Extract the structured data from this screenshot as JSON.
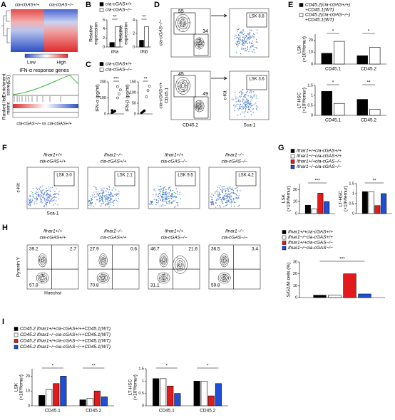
{
  "A": {
    "letter": "A",
    "columns": [
      "cia-cGAS+/+",
      "cia-cGAS−/−"
    ],
    "scale": [
      "Low",
      "High"
    ],
    "gsea_title": "IFN-α response genes",
    "es_label": [
      "Enrichment",
      "score(ES)"
    ],
    "metric_label": [
      "Ranked list",
      "metric"
    ],
    "comparison": "cia-cGAS−/− vs cia-cGAS+/+"
  },
  "B": {
    "letter": "B",
    "legend": [
      {
        "label": "cia-cGAS+/+",
        "color": "#000000"
      },
      {
        "label": "cia-cGAS−/−",
        "color": "#ffffff"
      }
    ],
    "charts": [
      {
        "type": "bar",
        "ylabel": [
          "Relative",
          "expression"
        ],
        "categories": [
          "Ifna"
        ],
        "series": [
          {
            "color": "#000000",
            "values": [
              1
            ]
          },
          {
            "color": "#ffffff",
            "values": [
              4.5
            ]
          }
        ],
        "ylim": [
          0,
          6
        ],
        "yticks": [
          0,
          2,
          4,
          6
        ],
        "sig": [
          "**"
        ]
      },
      {
        "type": "bar",
        "ylabel": [
          "Relative",
          "expression"
        ],
        "categories": [
          "Ifnb"
        ],
        "series": [
          {
            "color": "#000000",
            "values": [
              1
            ]
          },
          {
            "color": "#ffffff",
            "values": [
              3
            ]
          }
        ],
        "ylim": [
          0,
          4
        ],
        "yticks": [
          0,
          2,
          4
        ],
        "sig": [
          "**"
        ]
      }
    ]
  },
  "C": {
    "letter": "C",
    "legend": [
      {
        "label": "cia-cGAS+/+",
        "color": "#000000"
      },
      {
        "label": "cia-cGAS−/−",
        "color": "#ffffff"
      }
    ],
    "charts": [
      {
        "type": "dot",
        "ylabel": [
          "IFN-α (pg/ml)"
        ],
        "categories": [
          null
        ],
        "series": [
          {
            "color": "#000000",
            "values": [
              [
                8,
                12,
                18,
                22
              ]
            ]
          },
          {
            "color": "#ffffff",
            "values": [
              [
                100,
                125,
                150,
                170
              ]
            ]
          }
        ],
        "ylim": [
          0,
          200
        ],
        "yticks": [
          0,
          100,
          200
        ],
        "sig": [
          "***"
        ]
      },
      {
        "type": "dot",
        "ylabel": [
          "IFN-β (pg/ml)"
        ],
        "categories": [
          null
        ],
        "series": [
          {
            "color": "#000000",
            "values": [
              [
                5,
                10,
                15
              ]
            ]
          },
          {
            "color": "#ffffff",
            "values": [
              [
                80,
                110,
                130
              ]
            ]
          }
        ],
        "ylim": [
          0,
          150
        ],
        "yticks": [
          0,
          50,
          100,
          150
        ],
        "sig": [
          "**"
        ]
      }
    ]
  },
  "D": {
    "letter": "D",
    "rows": [
      "cia-cGAS−/−",
      "cia-cGAS+/+"
    ],
    "plots": [
      [
        "55",
        "34"
      ],
      [
        "LSK 8.8"
      ],
      [
        "45",
        "49"
      ],
      [
        "LSK 3.6"
      ]
    ],
    "x_labels": [
      "CD45.2",
      "Sca-1"
    ],
    "y_labels": [
      "CD45.1",
      "c-Kit"
    ]
  },
  "E": {
    "letter": "E",
    "legend": [
      {
        "lines": [
          "CD45.2(cia-cGAS+/+)",
          "+CD45.1(WT)"
        ],
        "color": "#000000"
      },
      {
        "lines": [
          "CD45.2(cia-cGAS−/−)",
          "+CD45.1(WT)"
        ],
        "color": "#ffffff"
      }
    ],
    "charts": [
      {
        "type": "bar",
        "ylabel": [
          "LSK",
          "(×10³/femur)"
        ],
        "categories": [
          "CD45.1",
          "CD45.2"
        ],
        "series": [
          {
            "color": "#000000",
            "values": [
              9,
              7
            ]
          },
          {
            "color": "#ffffff",
            "values": [
              19,
              14
            ]
          }
        ],
        "ylim": [
          0,
          25
        ],
        "yticks": [
          0,
          10,
          20
        ],
        "sig": [
          "*",
          "*"
        ]
      },
      {
        "type": "bar",
        "ylabel": [
          "LT-HSC",
          "(×10³/femur)"
        ],
        "categories": [
          "CD45.1",
          "CD45.2"
        ],
        "series": [
          {
            "color": "#000000",
            "values": [
              1.2,
              0.8
            ]
          },
          {
            "color": "#ffffff",
            "values": [
              0.6,
              0.3
            ]
          }
        ],
        "ylim": [
          0,
          1.5
        ],
        "yticks": [
          0,
          0.5,
          1,
          1.5
        ],
        "sig": [
          "*",
          "**"
        ]
      }
    ]
  },
  "F": {
    "letter": "F",
    "plots": [
      {
        "title": [
          "Ifnar1+/+",
          "cia-cGAS+/+"
        ],
        "gate": "LSK 3.0"
      },
      {
        "title": [
          "Ifnar1−/−",
          "cia-cGAS+/+"
        ],
        "gate": "LSK 2.1"
      },
      {
        "title": [
          "Ifnar1+/+",
          "cia-cGAS−/−"
        ],
        "gate": "LSK 9.5"
      },
      {
        "title": [
          "Ifnar1−/−",
          "cia-cGAS−/−"
        ],
        "gate": "LSK 4.2"
      }
    ],
    "x_label": "Sca-1",
    "y_label": "c-Kit"
  },
  "G": {
    "letter": "G",
    "legend": [
      {
        "label": "Ifnar1+/+cia-cGAS+/+",
        "color": "#000000"
      },
      {
        "label": "Ifnar1−/−cia-cGAS+/+",
        "color": "#ffffff"
      },
      {
        "label": "Ifnar1+/+cia-cGAS−/−",
        "color": "#e31a1c"
      },
      {
        "label": "Ifnar1−/−cia-cGAS−/−",
        "color": "#1f4fd8"
      }
    ],
    "charts": [
      {
        "type": "bar",
        "ylabel": [
          "LSK",
          "(×10³/femur)"
        ],
        "categories": [
          null
        ],
        "series": [
          {
            "color": "#000000",
            "values": [
              7
            ]
          },
          {
            "color": "#ffffff",
            "values": [
              4
            ]
          },
          {
            "color": "#e31a1c",
            "values": [
              17
            ]
          },
          {
            "color": "#1f4fd8",
            "values": [
              10
            ]
          }
        ],
        "ylim": [
          0,
          25
        ],
        "yticks": [
          0,
          10,
          20
        ],
        "sig": [
          "***"
        ]
      },
      {
        "type": "bar",
        "ylabel": [
          "LT-HSC",
          "(×10³/femur)"
        ],
        "categories": [
          null
        ],
        "series": [
          {
            "color": "#000000",
            "values": [
              1.1
            ]
          },
          {
            "color": "#ffffff",
            "values": [
              1.1
            ]
          },
          {
            "color": "#e31a1c",
            "values": [
              0.4
            ]
          },
          {
            "color": "#1f4fd8",
            "values": [
              1.0
            ]
          }
        ],
        "ylim": [
          0,
          1.5
        ],
        "yticks": [
          0,
          0.5,
          1,
          1.5
        ],
        "sig": [
          "**"
        ]
      }
    ]
  },
  "H": {
    "letter": "H",
    "plots": [
      {
        "title": [
          "Ifnar1+/+",
          "cia-cGAS+/+"
        ],
        "quadrants": [
          "39.2",
          "2.7",
          "57.9"
        ]
      },
      {
        "title": [
          "Ifnar1−/−",
          "cia-cGAS+/+"
        ],
        "quadrants": [
          "27.9",
          "0.6",
          "70.8"
        ]
      },
      {
        "title": [
          "Ifnar1+/+",
          "cia-cGAS−/−"
        ],
        "quadrants": [
          "46.7",
          "21.6",
          "31.1"
        ]
      },
      {
        "title": [
          "Ifnar1−/−",
          "cia-cGAS−/−"
        ],
        "quadrants": [
          "36.5",
          "3.4",
          "59.8"
        ]
      }
    ],
    "x_label": "Hoechst",
    "y_label": "Pyronin Y",
    "legend": [
      {
        "label": "Ifnar1+/+cia-cGAS+/+",
        "color": "#000000"
      },
      {
        "label": "Ifnar1−/−cia-cGAS+/+",
        "color": "#ffffff"
      },
      {
        "label": "Ifnar1+/+cia-cGAS−/−",
        "color": "#e31a1c"
      },
      {
        "label": "Ifnar1−/−cia-cGAS−/−",
        "color": "#1f4fd8"
      }
    ],
    "charts": [
      {
        "type": "bar",
        "ylabel": [
          "S/G2/M cells (%)"
        ],
        "categories": [
          null
        ],
        "series": [
          {
            "color": "#000000",
            "values": [
              2
            ]
          },
          {
            "color": "#ffffff",
            "values": [
              2
            ]
          },
          {
            "color": "#e31a1c",
            "values": [
              20
            ]
          },
          {
            "color": "#1f4fd8",
            "values": [
              3
            ]
          }
        ],
        "ylim": [
          0,
          30
        ],
        "yticks": [
          0,
          10,
          20,
          30
        ],
        "sig": [
          "***"
        ]
      }
    ]
  },
  "I": {
    "letter": "I",
    "legend": [
      {
        "label": "CD45.2 Ifnar1+/+cia-cGAS+/++CD45.1(WT)",
        "color": "#000000"
      },
      {
        "label": "CD45.2 Ifnar1−/−cia-cGAS+/++CD45.1(WT)",
        "color": "#ffffff"
      },
      {
        "label": "CD45.2 Ifnar1+/+cia-cGAS−/−+CD45.1(WT)",
        "color": "#e31a1c"
      },
      {
        "label": "CD45.2 Ifnar1−/−cia-cGAS−/−+CD45.1(WT)",
        "color": "#1f4fd8"
      }
    ],
    "charts": [
      {
        "type": "bar",
        "ylabel": [
          "LSK",
          "(×10³/femur)"
        ],
        "categories": [
          "CD45.1",
          "CD45.2"
        ],
        "series": [
          {
            "color": "#000000",
            "values": [
              7,
              4
            ]
          },
          {
            "color": "#ffffff",
            "values": [
              11,
              5
            ]
          },
          {
            "color": "#e31a1c",
            "values": [
              15,
              10
            ]
          },
          {
            "color": "#1f4fd8",
            "values": [
              20,
              6
            ]
          }
        ],
        "ylim": [
          0,
          25
        ],
        "yticks": [
          0,
          10,
          20
        ],
        "sig": [
          "*",
          "**"
        ]
      },
      {
        "type": "bar",
        "ylabel": [
          "LT-HSC",
          "(×10³/femur)"
        ],
        "categories": [
          "CD45.1",
          "CD45.2"
        ],
        "series": [
          {
            "color": "#000000",
            "values": [
              1.1,
              1.0
            ]
          },
          {
            "color": "#ffffff",
            "values": [
              1.1,
              1.0
            ]
          },
          {
            "color": "#e31a1c",
            "values": [
              0.8,
              0.4
            ]
          },
          {
            "color": "#1f4fd8",
            "values": [
              0.5,
              0.9
            ]
          }
        ],
        "ylim": [
          0,
          1.5
        ],
        "yticks": [
          0,
          0.5,
          1,
          1.5
        ],
        "sig": [
          "*",
          "*"
        ]
      }
    ]
  }
}
